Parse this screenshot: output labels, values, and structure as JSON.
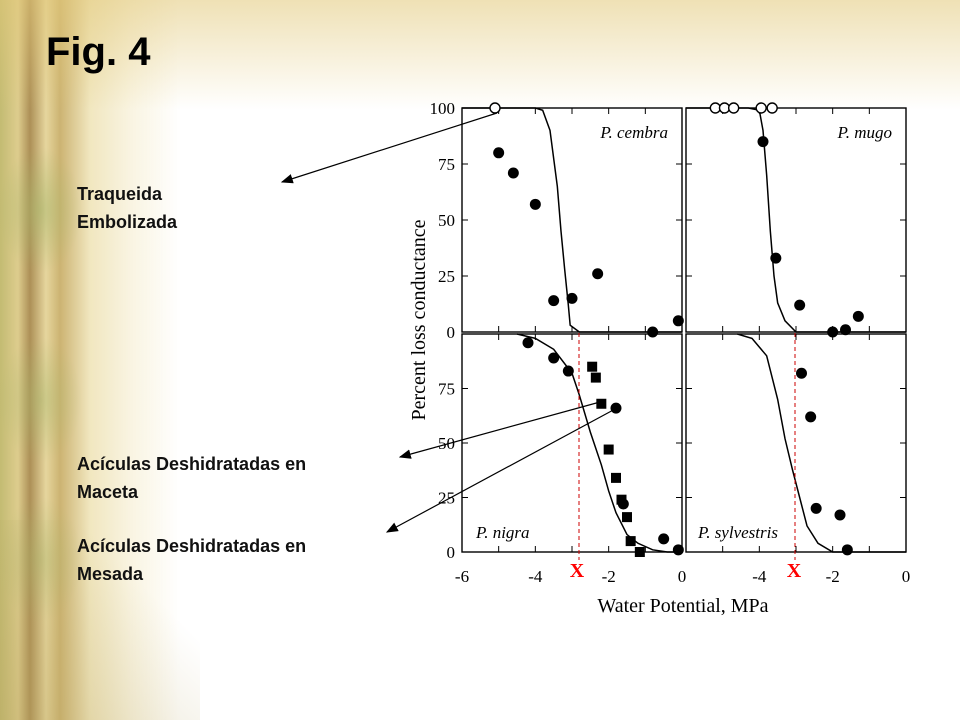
{
  "slide": {
    "title": "Fig. 4",
    "annotations": [
      {
        "line1": "Traqueida",
        "line2": "Embolizada"
      },
      {
        "line1": "Acículas Deshidratadas en",
        "line2": "Maceta"
      },
      {
        "line1": "Acículas Deshidratadas en",
        "line2": "Mesada"
      }
    ],
    "markers": [
      "X",
      "X"
    ]
  },
  "colors": {
    "marker": "#ff0000",
    "dashed_line": "#cc0000",
    "arrow": "#000000"
  },
  "chart_data": [
    {
      "type": "scatter",
      "title": "P. cembra",
      "ylabel": "Percent loss conductance",
      "xlabel": "Water Potential, MPa",
      "xlim": [
        -6,
        0
      ],
      "ylim": [
        0,
        100
      ],
      "yticks": [
        "100",
        "75",
        "50",
        "25",
        "0"
      ],
      "series": [
        {
          "marker": "open-circle",
          "x": [
            -5.1
          ],
          "y": [
            100
          ]
        },
        {
          "marker": "filled-circle",
          "x": [
            -5.0,
            -4.6,
            -4.0,
            -3.5,
            -3.0,
            -2.3,
            -0.8,
            -0.1
          ],
          "y": [
            80,
            71,
            57,
            14,
            15,
            26,
            0,
            5
          ]
        },
        {
          "marker": "curve",
          "x": [
            -6.0,
            -4.5,
            -4.0,
            -3.8,
            -3.6,
            -3.4,
            -3.3,
            -3.2,
            -3.1,
            -3.05,
            -2.8,
            0
          ],
          "y": [
            100,
            100,
            100,
            99,
            90,
            65,
            45,
            28,
            12,
            3,
            0,
            0
          ]
        }
      ]
    },
    {
      "type": "scatter",
      "title": "P. mugo",
      "xlim": [
        -6,
        0
      ],
      "ylim": [
        0,
        100
      ],
      "series": [
        {
          "marker": "open-circle",
          "x": [
            -5.2,
            -4.95,
            -4.7,
            -3.95,
            -3.65
          ],
          "y": [
            100,
            100,
            100,
            100,
            100
          ]
        },
        {
          "marker": "filled-circle",
          "x": [
            -3.9,
            -3.55,
            -2.9,
            -2.0,
            -1.65,
            -1.3
          ],
          "y": [
            85,
            33,
            12,
            0,
            1,
            7
          ]
        },
        {
          "marker": "curve",
          "x": [
            -6.0,
            -4.3,
            -4.0,
            -3.9,
            -3.8,
            -3.7,
            -3.6,
            -3.5,
            -3.3,
            -3.0,
            0
          ],
          "y": [
            100,
            100,
            99,
            90,
            70,
            45,
            25,
            13,
            5,
            0,
            0
          ]
        }
      ]
    },
    {
      "type": "scatter",
      "title": "P. nigra",
      "xticks": [
        "-6",
        "-4",
        "-2",
        "0"
      ],
      "xlim": [
        -6,
        0
      ],
      "ylim": [
        0,
        100
      ],
      "yticks": [
        "75",
        "50",
        "25",
        "0"
      ],
      "series": [
        {
          "marker": "filled-circle",
          "x": [
            -4.2,
            -3.5,
            -3.1,
            -1.8,
            -1.6,
            -0.5,
            -0.1
          ],
          "y": [
            96,
            89,
            83,
            66,
            22,
            6,
            1
          ]
        },
        {
          "marker": "filled-square",
          "x": [
            -2.45,
            -2.35,
            -2.2,
            -2.0,
            -1.8,
            -1.65,
            -1.5,
            -1.4,
            -1.15
          ],
          "y": [
            85,
            80,
            68,
            47,
            34,
            24,
            16,
            5,
            0
          ]
        },
        {
          "marker": "curve",
          "x": [
            -4.5,
            -4.0,
            -3.5,
            -3.0,
            -2.8,
            -2.5,
            -2.2,
            -2.0,
            -1.8,
            -1.5,
            -1.2,
            -0.8,
            -0.4,
            0
          ],
          "y": [
            100,
            98,
            93,
            82,
            72,
            55,
            40,
            28,
            18,
            8,
            4,
            1,
            0,
            0
          ]
        }
      ]
    },
    {
      "type": "scatter",
      "title": "P. sylvestris",
      "xticks": [
        "-4",
        "-2",
        "0"
      ],
      "xlim": [
        -6,
        0
      ],
      "ylim": [
        0,
        100
      ],
      "series": [
        {
          "marker": "filled-circle",
          "x": [
            -2.85,
            -2.6,
            -2.45,
            -1.8,
            -1.6
          ],
          "y": [
            82,
            62,
            20,
            17,
            1
          ]
        },
        {
          "marker": "curve",
          "x": [
            -4.6,
            -4.2,
            -3.8,
            -3.5,
            -3.3,
            -3.1,
            -2.9,
            -2.7,
            -2.4,
            -2.0,
            0
          ],
          "y": [
            100,
            98,
            90,
            70,
            52,
            38,
            25,
            12,
            4,
            0,
            0
          ]
        }
      ]
    }
  ]
}
